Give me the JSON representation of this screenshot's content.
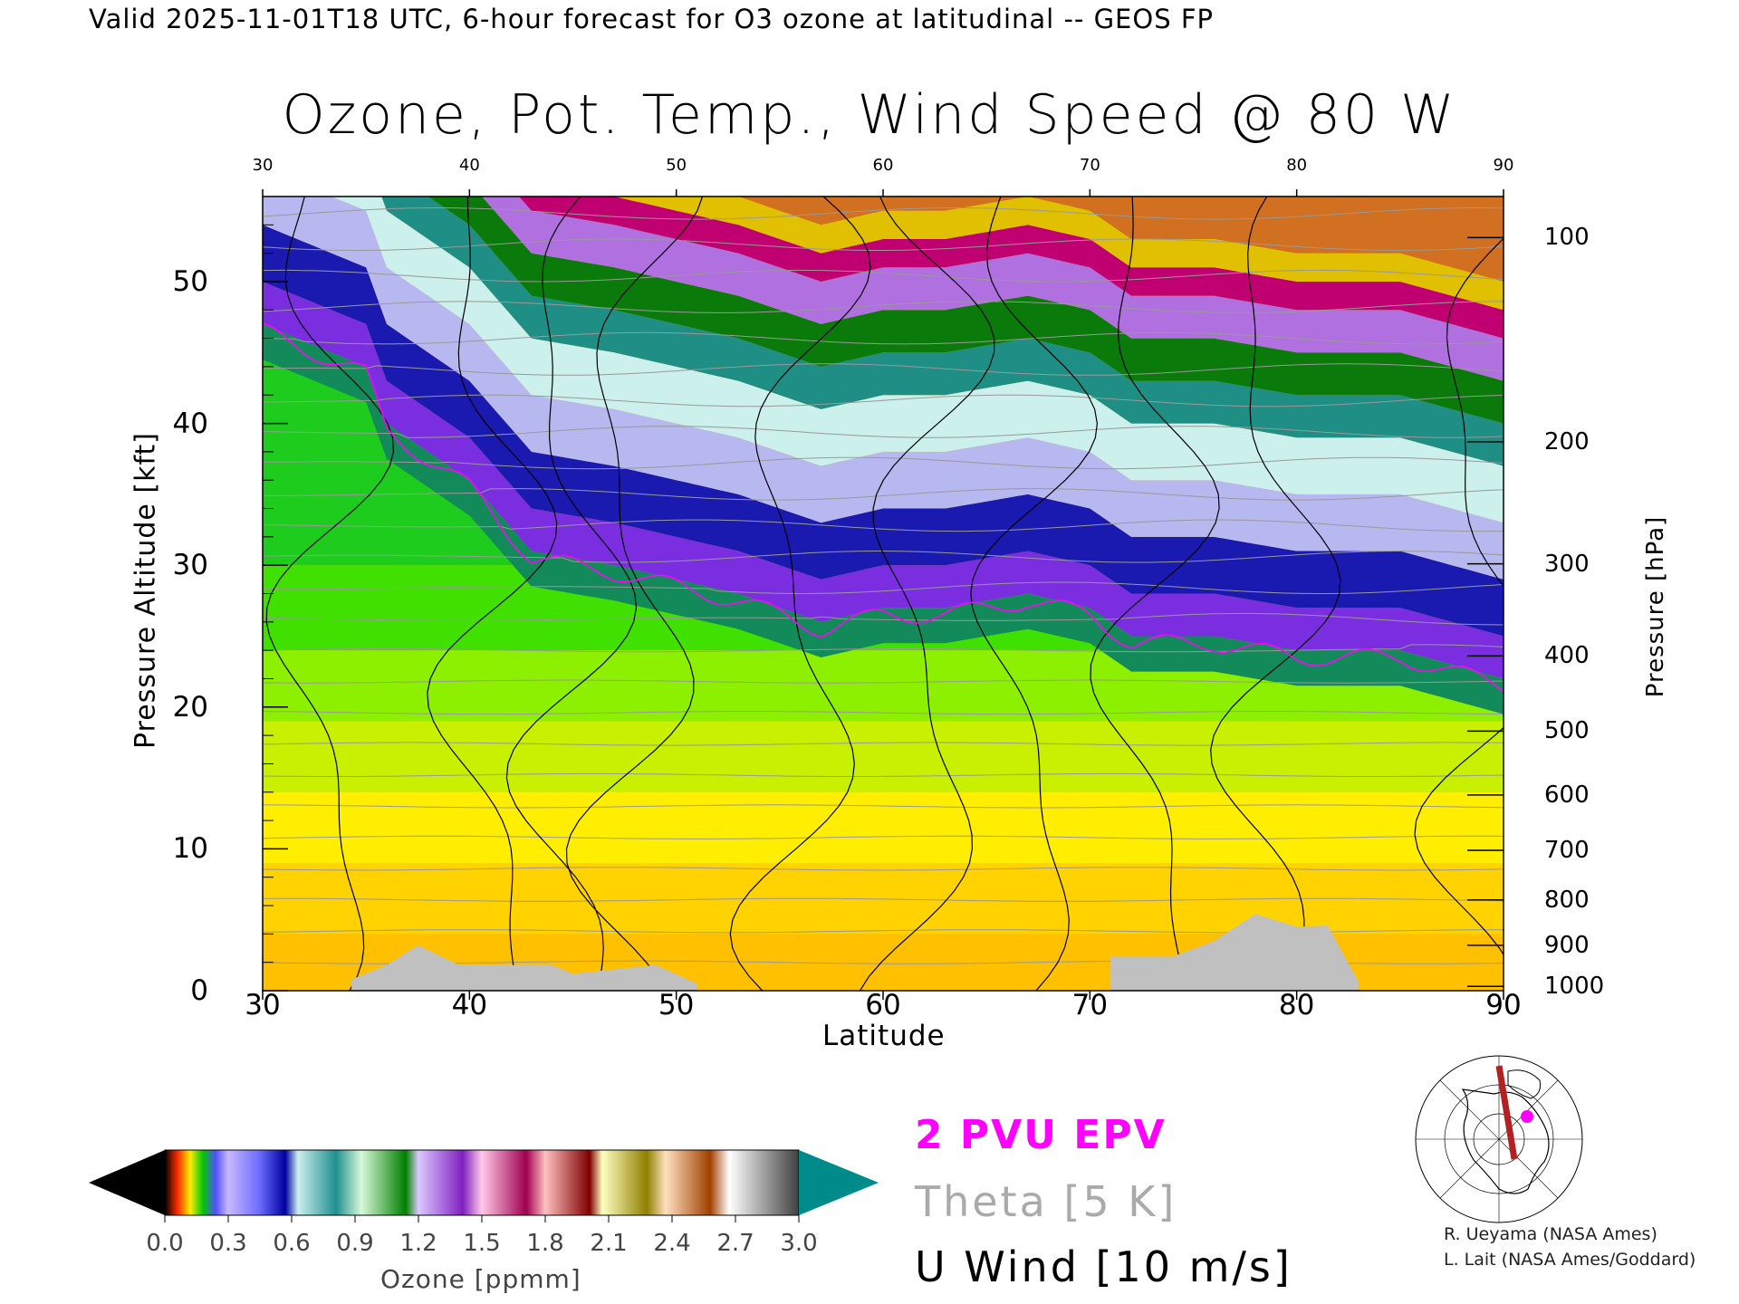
{
  "header": {
    "valid_line": "Valid 2025-11-01T18 UTC, 6-hour forecast for O3 ozone at latitudinal -- GEOS FP"
  },
  "chart_data": {
    "type": "heatmap",
    "title": "Ozone, Pot. Temp., Wind Speed @ 80 W",
    "xlabel": "Latitude",
    "ylabel": "Pressure Altitude [kft]",
    "y2label": "Pressure [hPa]",
    "xlim": [
      30,
      90
    ],
    "ylim": [
      0,
      56
    ],
    "x_ticks": [
      "30",
      "40",
      "50",
      "60",
      "70",
      "80",
      "90"
    ],
    "x_top_ticks": [
      "30",
      "40",
      "50",
      "60",
      "70",
      "80",
      "90"
    ],
    "y_ticks": [
      "0",
      "10",
      "20",
      "30",
      "40",
      "50"
    ],
    "pressure_ticks": [
      {
        "label": "100",
        "kft": 53.1
      },
      {
        "label": "200",
        "kft": 38.7
      },
      {
        "label": "300",
        "kft": 30.1
      },
      {
        "label": "400",
        "kft": 23.6
      },
      {
        "label": "500",
        "kft": 18.3
      },
      {
        "label": "600",
        "kft": 13.8
      },
      {
        "label": "700",
        "kft": 9.9
      },
      {
        "label": "800",
        "kft": 6.4
      },
      {
        "label": "900",
        "kft": 3.2
      },
      {
        "label": "1000",
        "kft": 0.3
      }
    ],
    "tropopause_kft": [
      {
        "lat": 30,
        "kft": 47
      },
      {
        "lat": 35,
        "kft": 44
      },
      {
        "lat": 36,
        "kft": 40
      },
      {
        "lat": 40,
        "kft": 36
      },
      {
        "lat": 43,
        "kft": 31
      },
      {
        "lat": 47,
        "kft": 30
      },
      {
        "lat": 50,
        "kft": 29
      },
      {
        "lat": 53,
        "kft": 28
      },
      {
        "lat": 57,
        "kft": 26
      },
      {
        "lat": 60,
        "kft": 27
      },
      {
        "lat": 63,
        "kft": 27
      },
      {
        "lat": 67,
        "kft": 28
      },
      {
        "lat": 70,
        "kft": 27
      },
      {
        "lat": 72,
        "kft": 25
      },
      {
        "lat": 76,
        "kft": 25
      },
      {
        "lat": 80,
        "kft": 24
      },
      {
        "lat": 85,
        "kft": 24
      },
      {
        "lat": 90,
        "kft": 22
      }
    ],
    "stratosphere_layers": [
      {
        "name": "purple-blue",
        "offset_kft": 0
      },
      {
        "name": "blue",
        "offset_kft": 3
      },
      {
        "name": "light-blue",
        "offset_kft": 7
      },
      {
        "name": "teal",
        "offset_kft": 11
      },
      {
        "name": "green",
        "offset_kft": 15
      },
      {
        "name": "violet",
        "offset_kft": 18
      },
      {
        "name": "magenta",
        "offset_kft": 21
      },
      {
        "name": "red",
        "offset_kft": 24
      },
      {
        "name": "yellow",
        "offset_kft": 26
      },
      {
        "name": "orange",
        "offset_kft": 28
      }
    ],
    "surface_terrain": [
      {
        "lat": 34.3,
        "kft": 0.8
      },
      {
        "lat": 36.0,
        "kft": 1.8
      },
      {
        "lat": 37.5,
        "kft": 3.2
      },
      {
        "lat": 39.5,
        "kft": 1.8
      },
      {
        "lat": 44.0,
        "kft": 1.8
      },
      {
        "lat": 45.0,
        "kft": 1.2
      },
      {
        "lat": 49.0,
        "kft": 1.8
      },
      {
        "lat": 51.0,
        "kft": 0.5
      },
      {
        "lat": 71.0,
        "kft": 2.4
      },
      {
        "lat": 74.0,
        "kft": 2.4
      },
      {
        "lat": 76.0,
        "kft": 3.5
      },
      {
        "lat": 78.0,
        "kft": 5.4
      },
      {
        "lat": 80.0,
        "kft": 4.5
      },
      {
        "lat": 81.5,
        "kft": 4.6
      },
      {
        "lat": 83.0,
        "kft": 0.6
      }
    ],
    "colorbar": {
      "label": "Ozone [ppmm]",
      "ticks": [
        "0.0",
        "0.3",
        "0.6",
        "0.9",
        "1.2",
        "1.5",
        "1.8",
        "2.1",
        "2.4",
        "2.7",
        "3.0"
      ],
      "range": [
        0.0,
        3.0
      ]
    },
    "legend": {
      "epv": "2 PVU EPV",
      "theta": "Theta [5 K]",
      "wind": "U Wind [10 m/s]"
    },
    "colors": {
      "epv": "#ff00ff",
      "theta": "#999999",
      "wind": "#000000",
      "terrain": "#c0c0c0"
    }
  },
  "credits": {
    "line1": "R. Ueyama (NASA Ames)",
    "line2": "L. Lait (NASA Ames/Goddard)"
  },
  "inset_map": {
    "icon": "polar-map-icon"
  }
}
